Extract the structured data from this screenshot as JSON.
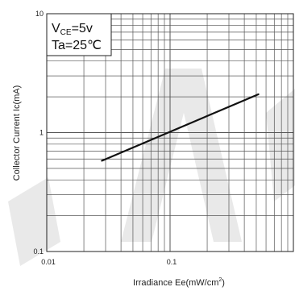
{
  "chart_data": {
    "type": "line",
    "xlabel": "Irradiance Ee(mW/cm",
    "xlabel_sup": "2",
    "xlabel_close": ")",
    "ylabel": "Collector Current Ic(mA)",
    "x_scale": "log",
    "y_scale": "log",
    "xlim": [
      0.01,
      1
    ],
    "ylim": [
      0.1,
      10
    ],
    "grid": true,
    "x_ticks": [
      {
        "value": 0.01,
        "label": "0.01"
      },
      {
        "value": 0.1,
        "label": "0.1"
      }
    ],
    "y_ticks": [
      {
        "value": 0.1,
        "label": "0.1"
      },
      {
        "value": 1,
        "label": "1"
      },
      {
        "value": 10,
        "label": "10"
      }
    ],
    "series": [
      {
        "x": [
          0.028,
          0.52
        ],
        "y": [
          0.58,
          2.1
        ]
      }
    ],
    "annotation": {
      "line1_main": "V",
      "line1_sub": "CE",
      "line1_rest": "=5v",
      "line2": "Ta=25℃"
    },
    "line_color": "#111111",
    "grid_color": "#555555"
  }
}
